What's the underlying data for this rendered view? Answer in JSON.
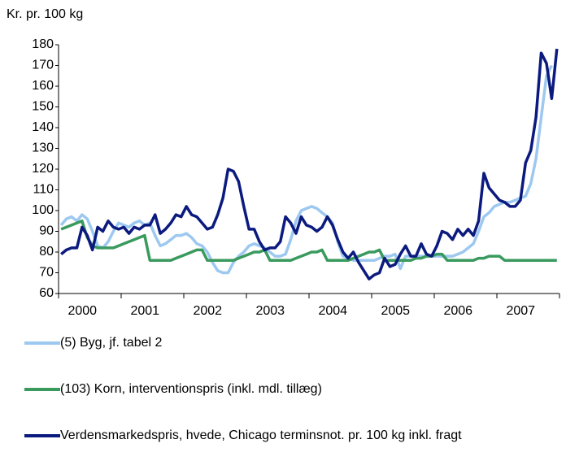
{
  "chart_data": {
    "type": "line",
    "title": "Kr. pr. 100 kg",
    "categories": [
      null,
      null,
      null,
      null,
      null,
      "2000",
      null,
      null,
      null,
      null,
      null,
      null,
      null,
      null,
      null,
      null,
      null,
      "2001",
      null,
      null,
      null,
      null,
      null,
      null,
      null,
      null,
      null,
      null,
      null,
      "2002",
      null,
      null,
      null,
      null,
      null,
      null,
      null,
      null,
      null,
      null,
      null,
      "2003",
      null,
      null,
      null,
      null,
      null,
      null,
      null,
      null,
      null,
      null,
      null,
      "2004",
      null,
      null,
      null,
      null,
      null,
      null,
      null,
      null,
      null,
      null,
      null,
      "2005",
      null,
      null,
      null,
      null,
      null,
      null,
      null,
      null,
      null,
      null,
      null,
      "2006",
      null,
      null,
      null,
      null,
      null,
      null,
      null,
      null,
      null,
      null,
      null,
      "2007",
      null,
      null,
      null,
      null,
      null,
      null
    ],
    "series": [
      {
        "name": "(5) Byg, jf. tabel 2",
        "color": "#9dc8f0",
        "values": [
          93,
          96,
          97,
          95,
          98,
          96,
          90,
          83,
          82,
          85,
          90,
          94,
          93,
          92,
          94,
          95,
          93,
          94,
          88,
          83,
          84,
          86,
          88,
          88,
          89,
          87,
          84,
          83,
          80,
          75,
          71,
          70,
          70,
          75,
          78,
          80,
          83,
          84,
          83,
          82,
          80,
          78,
          78,
          79,
          86,
          95,
          100,
          101,
          102,
          101,
          99,
          97,
          94,
          85,
          78,
          77,
          76,
          76,
          76,
          76,
          76,
          77,
          78,
          78,
          79,
          72,
          78,
          78,
          78,
          78,
          78,
          78,
          78,
          78,
          78,
          78,
          79,
          80,
          82,
          84,
          90,
          97,
          99,
          102,
          103,
          104,
          104,
          105,
          106,
          107,
          113,
          125,
          145,
          165,
          170,
          null
        ]
      },
      {
        "name": "(103) Korn, interventionspris (inkl. mdl. tillæg)",
        "color": "#3a9a5e",
        "values": [
          91,
          92,
          93,
          94,
          95,
          87,
          83,
          82,
          82,
          82,
          82,
          83,
          84,
          85,
          86,
          87,
          88,
          76,
          76,
          76,
          76,
          76,
          77,
          78,
          79,
          80,
          81,
          81,
          76,
          76,
          76,
          76,
          76,
          76,
          77,
          78,
          79,
          80,
          80,
          81,
          76,
          76,
          76,
          76,
          76,
          77,
          78,
          79,
          80,
          80,
          81,
          76,
          76,
          76,
          76,
          76,
          77,
          78,
          79,
          80,
          80,
          81,
          76,
          76,
          76,
          76,
          76,
          76,
          77,
          77,
          78,
          78,
          79,
          79,
          76,
          76,
          76,
          76,
          76,
          76,
          77,
          77,
          78,
          78,
          78,
          76,
          76,
          76,
          76,
          76,
          76,
          76,
          76,
          76,
          76,
          76
        ]
      },
      {
        "name": "Verdensmarkedspris, hvede, Chicago terminsnot. pr. 100 kg inkl. fragt",
        "color": "#0b1a7e",
        "values": [
          79,
          81,
          82,
          82,
          92,
          88,
          81,
          92,
          90,
          95,
          92,
          91,
          92,
          89,
          92,
          91,
          93,
          93,
          98,
          89,
          91,
          94,
          98,
          97,
          102,
          98,
          97,
          94,
          91,
          92,
          98,
          106,
          120,
          119,
          114,
          102,
          91,
          91,
          85,
          81,
          82,
          82,
          85,
          97,
          94,
          89,
          97,
          93,
          92,
          90,
          92,
          97,
          93,
          86,
          80,
          77,
          80,
          75,
          71,
          67,
          69,
          70,
          77,
          73,
          74,
          79,
          83,
          78,
          78,
          84,
          79,
          78,
          83,
          90,
          89,
          86,
          91,
          88,
          91,
          88,
          95,
          118,
          111,
          108,
          105,
          104,
          102,
          102,
          105,
          123,
          129,
          145,
          176,
          171,
          154,
          178
        ]
      }
    ],
    "ylim": [
      60,
      180
    ],
    "yticks": [
      60,
      70,
      80,
      90,
      100,
      110,
      120,
      130,
      140,
      150,
      160,
      170,
      180
    ]
  }
}
